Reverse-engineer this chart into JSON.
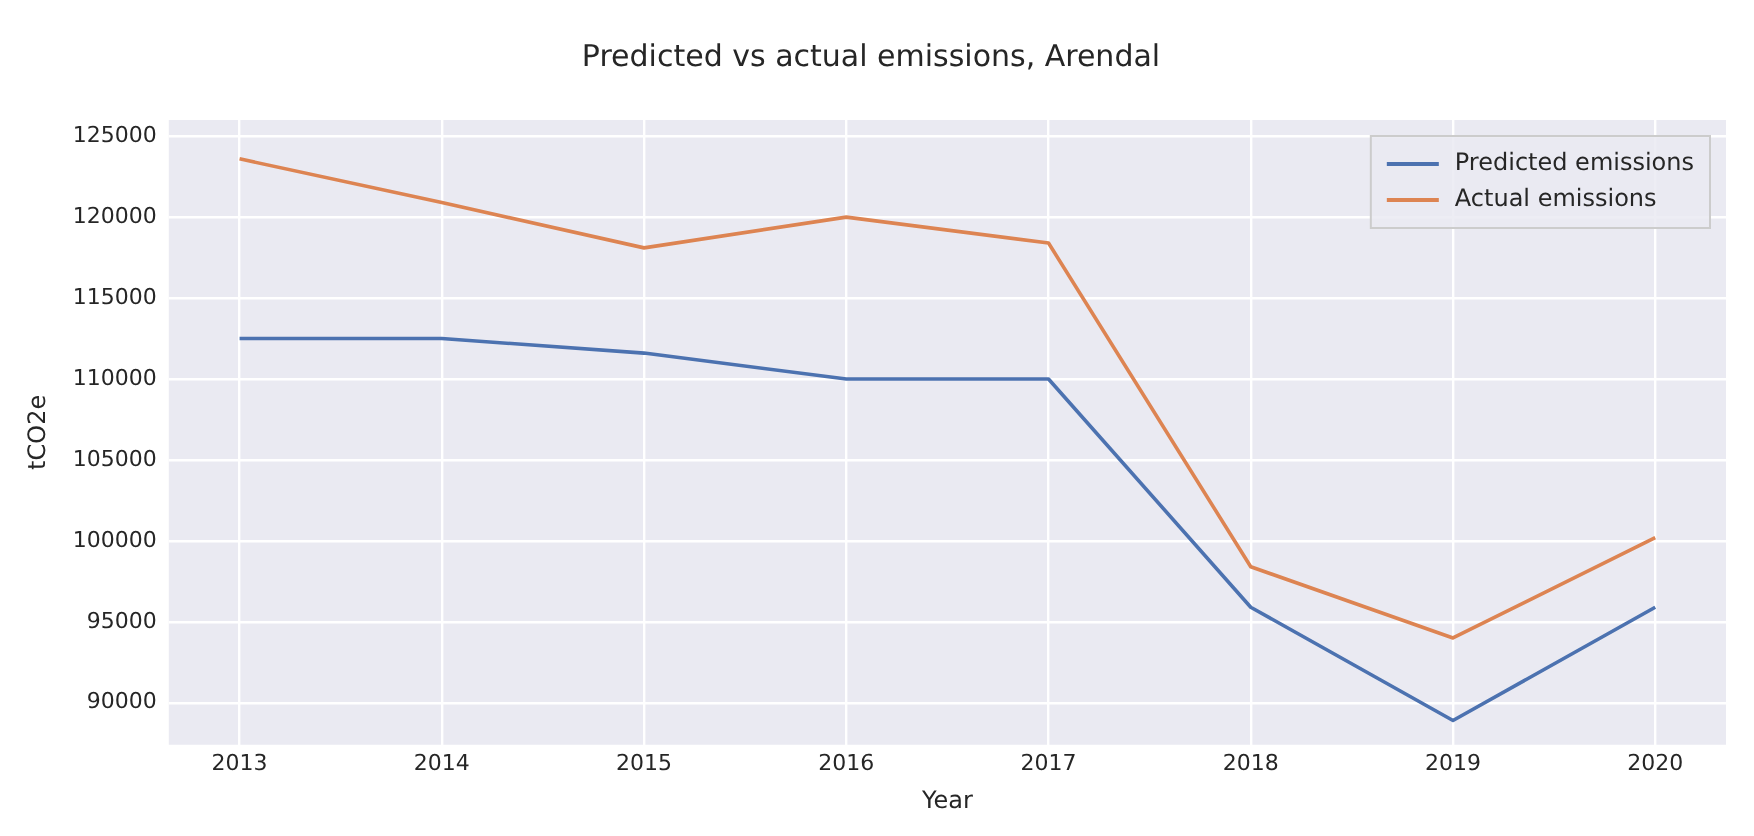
{
  "chart_data": {
    "type": "line",
    "title": "Predicted vs actual emissions, Arendal",
    "xlabel": "Year",
    "ylabel": "tCO2e",
    "x": [
      2013,
      2014,
      2015,
      2016,
      2017,
      2018,
      2019,
      2020
    ],
    "series": [
      {
        "name": "Predicted emissions",
        "color": "#4c72b0",
        "values": [
          112500,
          112500,
          111600,
          110000,
          110000,
          95900,
          88900,
          95900
        ]
      },
      {
        "name": "Actual emissions",
        "color": "#dd8452",
        "values": [
          123600,
          120900,
          118100,
          120000,
          118400,
          98400,
          94000,
          100200
        ]
      }
    ],
    "xlim": [
      2012.65,
      2020.35
    ],
    "xticks": [
      2013,
      2014,
      2015,
      2016,
      2017,
      2018,
      2019,
      2020
    ],
    "ylim": [
      87400,
      126000
    ],
    "yticks": [
      90000,
      95000,
      100000,
      105000,
      110000,
      115000,
      120000,
      125000
    ],
    "grid": true,
    "legend": "top right",
    "marker": "none",
    "line_style": "solid"
  }
}
